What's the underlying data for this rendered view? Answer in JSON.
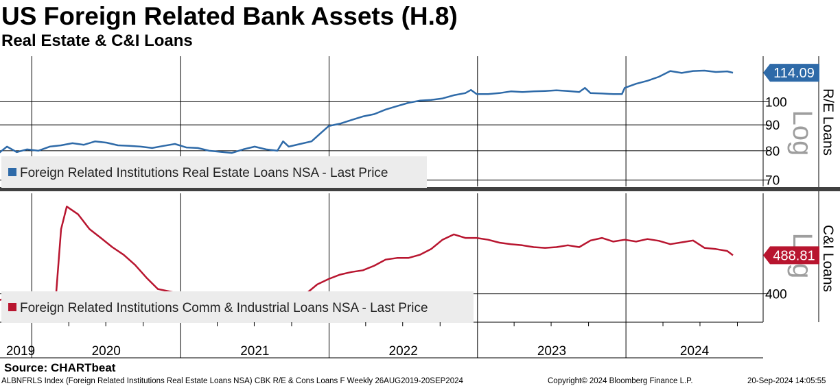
{
  "header": {
    "title": "US Foreign Related Bank Assets (H.8)",
    "subtitle": "Real Estate & C&I Loans"
  },
  "source": "Source: CHARTbeat",
  "footer": {
    "left": "ALBNFRLS Index (Foreign Related Institutions Real Estate Loans NSA) CBK R/E & Cons Loans F  Weekly 26AUG2019-20SEP2024",
    "middle": "Copyright© 2024 Bloomberg Finance L.P.",
    "right": "20-Sep-2024 14:05:55"
  },
  "colors": {
    "real_estate": "#2e6aa8",
    "ci": "#b8152f",
    "separator": "#404040",
    "legend_bg": "#ececec"
  },
  "chart_data": [
    {
      "type": "line",
      "title": "",
      "ylabel": "R/E Loans",
      "scale_label": "Log",
      "log_scale": true,
      "ylim": [
        68,
        123
      ],
      "yticks": [
        70,
        80,
        90,
        100
      ],
      "legend_position": "bottom-left",
      "grid": true,
      "last_value_label": "114.09",
      "series": [
        {
          "name": "Foreign Related Institutions Real Estate Loans NSA - Last Price",
          "color": "#2e6aa8",
          "points": [
            [
              "2019-08-26",
              75.5
            ],
            [
              "2019-09-20",
              76.5
            ],
            [
              "2019-10-15",
              79.5
            ],
            [
              "2019-11-01",
              81.5
            ],
            [
              "2019-11-25",
              79.5
            ],
            [
              "2019-12-20",
              80.5
            ],
            [
              "2020-01-17",
              80.0
            ],
            [
              "2020-02-14",
              81.5
            ],
            [
              "2020-03-13",
              82.0
            ],
            [
              "2020-04-10",
              82.8
            ],
            [
              "2020-05-08",
              82.2
            ],
            [
              "2020-06-05",
              83.5
            ],
            [
              "2020-07-03",
              83.0
            ],
            [
              "2020-07-31",
              82.0
            ],
            [
              "2020-08-28",
              81.8
            ],
            [
              "2020-09-25",
              81.5
            ],
            [
              "2020-10-23",
              81.0
            ],
            [
              "2020-11-20",
              81.8
            ],
            [
              "2020-12-18",
              82.5
            ],
            [
              "2021-01-15",
              81.2
            ],
            [
              "2021-02-12",
              81.0
            ],
            [
              "2021-03-12",
              80.0
            ],
            [
              "2021-04-09",
              79.6
            ],
            [
              "2021-05-07",
              79.2
            ],
            [
              "2021-06-04",
              80.5
            ],
            [
              "2021-07-02",
              81.5
            ],
            [
              "2021-07-30",
              80.5
            ],
            [
              "2021-08-27",
              80.0
            ],
            [
              "2021-09-10",
              83.5
            ],
            [
              "2021-09-24",
              81.5
            ],
            [
              "2021-10-22",
              82.5
            ],
            [
              "2021-11-19",
              83.5
            ],
            [
              "2021-12-10",
              86.5
            ],
            [
              "2021-12-31",
              89.5
            ],
            [
              "2022-01-28",
              90.5
            ],
            [
              "2022-02-25",
              92.0
            ],
            [
              "2022-03-25",
              93.5
            ],
            [
              "2022-04-22",
              94.5
            ],
            [
              "2022-05-20",
              96.5
            ],
            [
              "2022-06-17",
              98.0
            ],
            [
              "2022-07-15",
              99.5
            ],
            [
              "2022-08-12",
              100.5
            ],
            [
              "2022-09-09",
              100.8
            ],
            [
              "2022-10-07",
              101.5
            ],
            [
              "2022-11-04",
              103.0
            ],
            [
              "2022-12-02",
              104.0
            ],
            [
              "2022-12-16",
              105.5
            ],
            [
              "2022-12-30",
              103.5
            ],
            [
              "2023-01-27",
              103.5
            ],
            [
              "2023-02-24",
              104.0
            ],
            [
              "2023-03-24",
              104.8
            ],
            [
              "2023-04-21",
              104.5
            ],
            [
              "2023-05-19",
              104.8
            ],
            [
              "2023-06-16",
              105.0
            ],
            [
              "2023-07-14",
              105.3
            ],
            [
              "2023-08-11",
              105.0
            ],
            [
              "2023-09-08",
              104.5
            ],
            [
              "2023-09-22",
              106.5
            ],
            [
              "2023-10-06",
              104.0
            ],
            [
              "2023-11-03",
              103.8
            ],
            [
              "2023-12-01",
              103.5
            ],
            [
              "2023-12-22",
              103.5
            ],
            [
              "2023-12-29",
              106.5
            ],
            [
              "2024-01-26",
              108.5
            ],
            [
              "2024-02-23",
              110.0
            ],
            [
              "2024-03-22",
              112.0
            ],
            [
              "2024-04-19",
              115.0
            ],
            [
              "2024-05-17",
              114.0
            ],
            [
              "2024-06-14",
              115.0
            ],
            [
              "2024-07-12",
              115.2
            ],
            [
              "2024-08-09",
              114.5
            ],
            [
              "2024-09-06",
              114.8
            ],
            [
              "2024-09-20",
              114.09
            ]
          ]
        }
      ]
    },
    {
      "type": "line",
      "title": "",
      "ylabel": "C&I Loans",
      "scale_label": "Log",
      "log_scale": true,
      "ylim": [
        345,
        675
      ],
      "yticks": [
        400
      ],
      "legend_position": "bottom-left",
      "grid": true,
      "last_value_label": "488.81",
      "series": [
        {
          "name": "Foreign Related Institutions Comm & Industrial Loans NSA - Last Price",
          "color": "#b8152f",
          "points": [
            [
              "2019-08-26",
              385.0
            ],
            [
              "2019-09-27",
              383.0
            ],
            [
              "2019-10-25",
              390.0
            ],
            [
              "2019-11-29",
              398.0
            ],
            [
              "2019-12-27",
              385.0
            ],
            [
              "2020-01-10",
              377.0
            ],
            [
              "2020-02-14",
              378.0
            ],
            [
              "2020-02-28",
              380.0
            ],
            [
              "2020-03-13",
              560.0
            ],
            [
              "2020-03-27",
              630.0
            ],
            [
              "2020-04-24",
              605.0
            ],
            [
              "2020-05-22",
              560.0
            ],
            [
              "2020-06-19",
              535.0
            ],
            [
              "2020-07-17",
              510.0
            ],
            [
              "2020-08-14",
              490.0
            ],
            [
              "2020-09-11",
              465.0
            ],
            [
              "2020-10-09",
              435.0
            ],
            [
              "2020-11-06",
              410.0
            ],
            [
              "2020-12-04",
              405.0
            ],
            [
              "2021-01-01",
              400.0
            ],
            [
              "2021-01-29",
              397.0
            ],
            [
              "2021-02-26",
              385.0
            ],
            [
              "2021-03-26",
              388.0
            ],
            [
              "2021-04-23",
              382.0
            ],
            [
              "2021-05-21",
              383.0
            ],
            [
              "2021-06-18",
              382.0
            ],
            [
              "2021-07-16",
              385.0
            ],
            [
              "2021-08-13",
              387.0
            ],
            [
              "2021-09-10",
              395.0
            ],
            [
              "2021-10-08",
              397.0
            ],
            [
              "2021-11-05",
              400.0
            ],
            [
              "2021-12-03",
              420.0
            ],
            [
              "2021-12-31",
              432.0
            ],
            [
              "2022-01-28",
              442.0
            ],
            [
              "2022-02-25",
              448.0
            ],
            [
              "2022-03-25",
              452.0
            ],
            [
              "2022-04-22",
              463.0
            ],
            [
              "2022-05-20",
              478.0
            ],
            [
              "2022-06-17",
              482.0
            ],
            [
              "2022-07-15",
              482.0
            ],
            [
              "2022-08-12",
              490.0
            ],
            [
              "2022-09-09",
              505.0
            ],
            [
              "2022-10-07",
              530.0
            ],
            [
              "2022-11-04",
              545.0
            ],
            [
              "2022-12-02",
              535.0
            ],
            [
              "2022-12-30",
              535.0
            ],
            [
              "2023-01-27",
              530.0
            ],
            [
              "2023-02-24",
              522.0
            ],
            [
              "2023-03-24",
              518.0
            ],
            [
              "2023-04-21",
              515.0
            ],
            [
              "2023-05-19",
              510.0
            ],
            [
              "2023-06-16",
              508.0
            ],
            [
              "2023-07-14",
              510.0
            ],
            [
              "2023-08-11",
              515.0
            ],
            [
              "2023-09-08",
              510.0
            ],
            [
              "2023-10-06",
              528.0
            ],
            [
              "2023-11-03",
              535.0
            ],
            [
              "2023-12-01",
              525.0
            ],
            [
              "2023-12-29",
              530.0
            ],
            [
              "2024-01-26",
              525.0
            ],
            [
              "2024-02-23",
              532.0
            ],
            [
              "2024-03-22",
              527.0
            ],
            [
              "2024-04-19",
              518.0
            ],
            [
              "2024-05-17",
              523.0
            ],
            [
              "2024-06-14",
              528.0
            ],
            [
              "2024-07-12",
              508.0
            ],
            [
              "2024-08-09",
              505.0
            ],
            [
              "2024-09-06",
              500.0
            ],
            [
              "2024-09-20",
              488.81
            ]
          ]
        }
      ]
    }
  ],
  "x_axis": {
    "years": [
      "2019",
      "2020",
      "2021",
      "2022",
      "2023",
      "2024"
    ]
  }
}
